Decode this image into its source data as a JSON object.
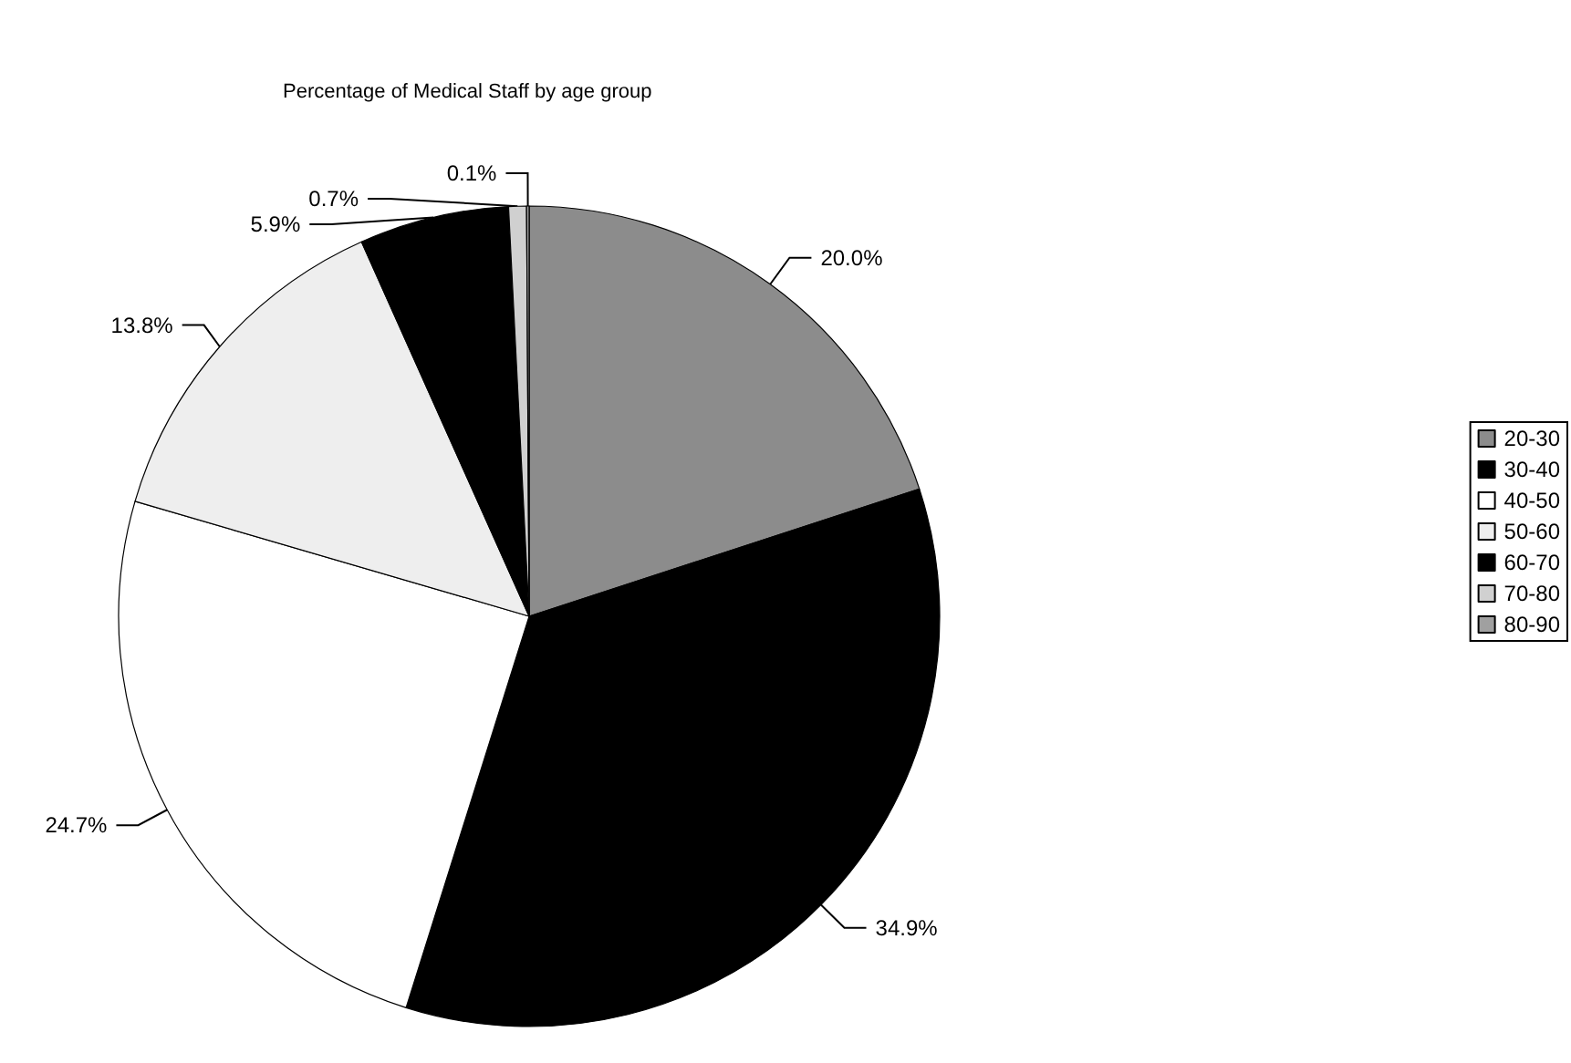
{
  "chart_data": {
    "type": "pie",
    "title": "Percentage of Medical Staff by age group",
    "categories": [
      "20-30",
      "30-40",
      "40-50",
      "50-60",
      "60-70",
      "70-80",
      "80-90"
    ],
    "values": [
      20.0,
      34.9,
      24.7,
      13.8,
      5.9,
      0.7,
      0.1
    ],
    "value_labels": [
      "20.0%",
      "34.9%",
      "24.7%",
      "13.8%",
      "5.9%",
      "0.7%",
      "0.1%"
    ],
    "colors": [
      "#8c8c8c",
      "#000000",
      "#ffffff",
      "#eeeeee",
      "#000000",
      "#d0d0d0",
      "#a0a0a0"
    ],
    "legend": "right"
  }
}
